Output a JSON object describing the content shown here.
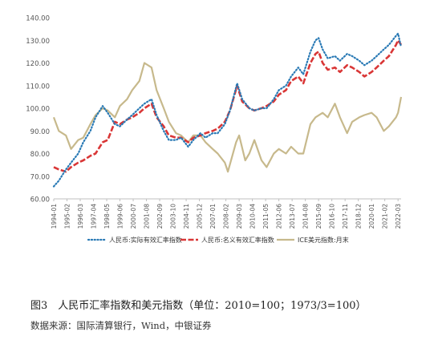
{
  "figure": {
    "caption": "图3　人民币汇率指数和美元指数（单位：2010=100；1973/3=100）",
    "source": "数据来源：国际清算银行，Wind，中银证券"
  },
  "chart_data": {
    "type": "line",
    "ylim": [
      60,
      140
    ],
    "yticks": [
      "60.00",
      "70.00",
      "80.00",
      "90.00",
      "100.00",
      "110.00",
      "120.00",
      "130.00",
      "140.00"
    ],
    "x_start": "1994-01",
    "x_end": "2022-06",
    "xticks": [
      "1994-01",
      "1995-02",
      "1996-03",
      "1997-04",
      "1998-05",
      "1999-06",
      "2000-07",
      "2001-08",
      "2002-09",
      "2003-10",
      "2004-11",
      "2005-12",
      "2007-01",
      "2008-02",
      "2009-03",
      "2010-04",
      "2011-05",
      "2012-06",
      "2013-07",
      "2014-08",
      "2015-09",
      "2016-10",
      "2017-11",
      "2018-12",
      "2020-01",
      "2021-02",
      "2022-03"
    ],
    "grid": false,
    "legend_position": "bottom",
    "series": [
      {
        "name": "人民币:实际有效汇率指数",
        "color": "#2a7ab5",
        "style": "dotted",
        "points": [
          [
            "1994-01",
            65.5
          ],
          [
            "1994-06",
            68
          ],
          [
            "1995-01",
            73
          ],
          [
            "1995-06",
            76
          ],
          [
            "1996-01",
            80
          ],
          [
            "1996-06",
            85
          ],
          [
            "1997-01",
            90
          ],
          [
            "1997-06",
            96
          ],
          [
            "1998-01",
            101
          ],
          [
            "1998-06",
            98
          ],
          [
            "1999-01",
            93
          ],
          [
            "1999-06",
            92
          ],
          [
            "2000-01",
            95
          ],
          [
            "2000-06",
            97
          ],
          [
            "2001-01",
            100
          ],
          [
            "2001-06",
            102
          ],
          [
            "2002-01",
            104
          ],
          [
            "2002-06",
            97
          ],
          [
            "2003-01",
            90
          ],
          [
            "2003-06",
            86
          ],
          [
            "2004-01",
            86
          ],
          [
            "2004-06",
            87
          ],
          [
            "2005-01",
            83
          ],
          [
            "2005-06",
            86
          ],
          [
            "2006-01",
            89
          ],
          [
            "2006-06",
            87
          ],
          [
            "2007-01",
            89
          ],
          [
            "2007-06",
            89
          ],
          [
            "2008-01",
            93
          ],
          [
            "2008-06",
            99
          ],
          [
            "2009-01",
            111
          ],
          [
            "2009-06",
            104
          ],
          [
            "2010-01",
            100
          ],
          [
            "2010-06",
            99
          ],
          [
            "2011-01",
            100
          ],
          [
            "2011-06",
            100
          ],
          [
            "2012-01",
            104
          ],
          [
            "2012-06",
            108
          ],
          [
            "2013-01",
            110
          ],
          [
            "2013-06",
            114
          ],
          [
            "2014-01",
            118
          ],
          [
            "2014-06",
            115
          ],
          [
            "2015-01",
            125
          ],
          [
            "2015-06",
            130
          ],
          [
            "2015-09",
            131
          ],
          [
            "2016-01",
            126
          ],
          [
            "2016-06",
            122
          ],
          [
            "2017-01",
            123
          ],
          [
            "2017-06",
            121
          ],
          [
            "2018-01",
            124
          ],
          [
            "2018-06",
            123
          ],
          [
            "2019-01",
            121
          ],
          [
            "2019-06",
            119
          ],
          [
            "2020-01",
            121
          ],
          [
            "2020-06",
            123
          ],
          [
            "2021-01",
            126
          ],
          [
            "2021-06",
            128
          ],
          [
            "2022-01",
            132
          ],
          [
            "2022-03",
            133
          ],
          [
            "2022-06",
            127
          ]
        ]
      },
      {
        "name": "人民币:名义有效汇率指数",
        "color": "#d93636",
        "style": "dashed",
        "points": [
          [
            "1994-01",
            74
          ],
          [
            "1994-06",
            73
          ],
          [
            "1995-01",
            72
          ],
          [
            "1995-06",
            74
          ],
          [
            "1996-01",
            76
          ],
          [
            "1996-06",
            77
          ],
          [
            "1997-01",
            79
          ],
          [
            "1997-06",
            80
          ],
          [
            "1998-01",
            85
          ],
          [
            "1998-06",
            86
          ],
          [
            "1999-01",
            94
          ],
          [
            "1999-06",
            93
          ],
          [
            "2000-01",
            95
          ],
          [
            "2000-06",
            96
          ],
          [
            "2001-01",
            98
          ],
          [
            "2001-06",
            100
          ],
          [
            "2002-01",
            102
          ],
          [
            "2002-06",
            96
          ],
          [
            "2003-01",
            92
          ],
          [
            "2003-06",
            88
          ],
          [
            "2004-01",
            87
          ],
          [
            "2004-06",
            87
          ],
          [
            "2005-01",
            85
          ],
          [
            "2005-06",
            87
          ],
          [
            "2006-01",
            88
          ],
          [
            "2006-06",
            89
          ],
          [
            "2007-01",
            90
          ],
          [
            "2007-06",
            91
          ],
          [
            "2008-01",
            94
          ],
          [
            "2008-06",
            99
          ],
          [
            "2009-01",
            110
          ],
          [
            "2009-06",
            103
          ],
          [
            "2010-01",
            100
          ],
          [
            "2010-06",
            99
          ],
          [
            "2011-01",
            100
          ],
          [
            "2011-06",
            101
          ],
          [
            "2012-01",
            103
          ],
          [
            "2012-06",
            106
          ],
          [
            "2013-01",
            108
          ],
          [
            "2013-06",
            112
          ],
          [
            "2014-01",
            114
          ],
          [
            "2014-06",
            111
          ],
          [
            "2015-01",
            120
          ],
          [
            "2015-06",
            124
          ],
          [
            "2015-09",
            125
          ],
          [
            "2016-01",
            120
          ],
          [
            "2016-06",
            117
          ],
          [
            "2017-01",
            118
          ],
          [
            "2017-06",
            116
          ],
          [
            "2018-01",
            119
          ],
          [
            "2018-06",
            118
          ],
          [
            "2019-01",
            116
          ],
          [
            "2019-06",
            114
          ],
          [
            "2020-01",
            116
          ],
          [
            "2020-06",
            118
          ],
          [
            "2021-01",
            121
          ],
          [
            "2021-06",
            123
          ],
          [
            "2022-01",
            128
          ],
          [
            "2022-03",
            130
          ],
          [
            "2022-06",
            128
          ]
        ]
      },
      {
        "name": "ICE美元指数:月末",
        "color": "#c7b98c",
        "style": "solid",
        "points": [
          [
            "1994-01",
            96
          ],
          [
            "1994-06",
            90
          ],
          [
            "1995-01",
            88
          ],
          [
            "1995-06",
            82
          ],
          [
            "1996-01",
            86
          ],
          [
            "1996-06",
            87
          ],
          [
            "1997-01",
            93
          ],
          [
            "1997-06",
            97
          ],
          [
            "1998-01",
            100
          ],
          [
            "1998-06",
            99
          ],
          [
            "1999-01",
            96
          ],
          [
            "1999-06",
            101
          ],
          [
            "2000-01",
            104
          ],
          [
            "2000-06",
            108
          ],
          [
            "2001-01",
            112
          ],
          [
            "2001-06",
            120
          ],
          [
            "2002-01",
            118
          ],
          [
            "2002-06",
            108
          ],
          [
            "2003-01",
            100
          ],
          [
            "2003-06",
            94
          ],
          [
            "2004-01",
            89
          ],
          [
            "2004-06",
            88
          ],
          [
            "2005-01",
            85
          ],
          [
            "2005-06",
            88
          ],
          [
            "2006-01",
            88
          ],
          [
            "2006-06",
            85
          ],
          [
            "2007-01",
            82
          ],
          [
            "2007-06",
            80
          ],
          [
            "2008-01",
            76
          ],
          [
            "2008-04",
            72
          ],
          [
            "2008-12",
            85
          ],
          [
            "2009-03",
            88
          ],
          [
            "2009-09",
            77
          ],
          [
            "2010-01",
            80
          ],
          [
            "2010-06",
            86
          ],
          [
            "2011-01",
            77
          ],
          [
            "2011-06",
            74
          ],
          [
            "2012-01",
            80
          ],
          [
            "2012-06",
            82
          ],
          [
            "2013-01",
            80
          ],
          [
            "2013-06",
            83
          ],
          [
            "2014-01",
            80
          ],
          [
            "2014-06",
            80
          ],
          [
            "2015-01",
            93
          ],
          [
            "2015-06",
            96
          ],
          [
            "2016-01",
            98
          ],
          [
            "2016-06",
            96
          ],
          [
            "2017-01",
            102
          ],
          [
            "2017-06",
            96
          ],
          [
            "2018-01",
            89
          ],
          [
            "2018-06",
            94
          ],
          [
            "2019-01",
            96
          ],
          [
            "2019-06",
            97
          ],
          [
            "2020-01",
            98
          ],
          [
            "2020-06",
            96
          ],
          [
            "2021-01",
            90
          ],
          [
            "2021-06",
            92
          ],
          [
            "2022-01",
            96
          ],
          [
            "2022-03",
            98
          ],
          [
            "2022-06",
            105
          ]
        ]
      }
    ]
  }
}
